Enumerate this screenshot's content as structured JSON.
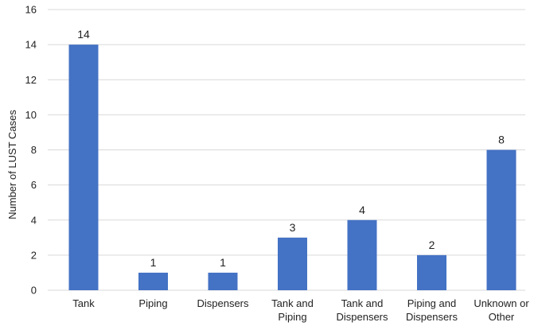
{
  "chart_data": {
    "type": "bar",
    "title": "",
    "xlabel": "",
    "ylabel": "Number of LUST Cases",
    "ylim": [
      0,
      16
    ],
    "yticks": [
      0,
      2,
      4,
      6,
      8,
      10,
      12,
      14,
      16
    ],
    "grid": true,
    "legend": "none",
    "bar_color": "#4472C4",
    "categories": [
      [
        "Tank"
      ],
      [
        "Piping"
      ],
      [
        "Dispensers"
      ],
      [
        "Tank and",
        "Piping"
      ],
      [
        "Tank and",
        "Dispensers"
      ],
      [
        "Piping and",
        "Dispensers"
      ],
      [
        "Unknown or",
        "Other"
      ]
    ],
    "values": [
      14,
      1,
      1,
      3,
      4,
      2,
      8
    ],
    "data_labels": [
      "14",
      "1",
      "1",
      "3",
      "4",
      "2",
      "8"
    ]
  }
}
